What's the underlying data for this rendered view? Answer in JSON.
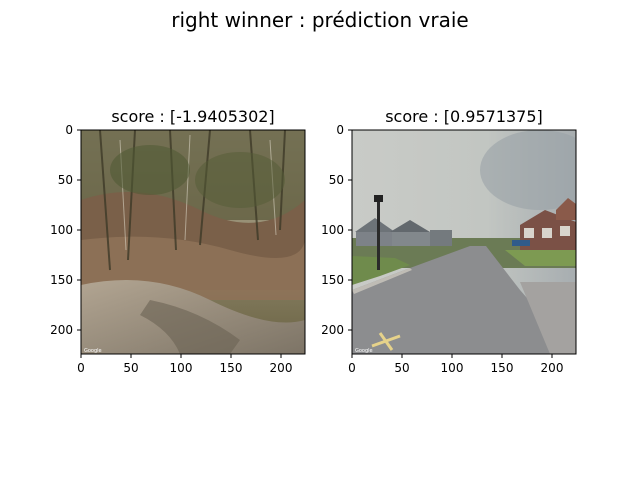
{
  "figure": {
    "suptitle": "right winner : prédiction vraie"
  },
  "chart_data": [
    {
      "type": "image",
      "title": "score : [-1.9405302]",
      "xlabel": "",
      "ylabel": "",
      "xlim": [
        0,
        224
      ],
      "ylim": [
        224,
        0
      ],
      "xticks": [
        0,
        50,
        100,
        150,
        200
      ],
      "yticks": [
        0,
        50,
        100,
        150,
        200
      ],
      "image_content": "forest-slope-with-leaf-litter-and-path",
      "watermark": "Google",
      "colors": {
        "sky": "#c9c2b0",
        "trees": "#5b5a3a",
        "litter": "#8a6e52",
        "ground": "#a39a8e"
      }
    },
    {
      "type": "image",
      "title": "score : [0.9571375]",
      "xlabel": "",
      "ylabel": "",
      "xlim": [
        0,
        224
      ],
      "ylim": [
        224,
        0
      ],
      "xticks": [
        0,
        50,
        100,
        150,
        200
      ],
      "yticks": [
        0,
        50,
        100,
        150,
        200
      ],
      "image_content": "suburban-street-with-houses-and-lamp-post",
      "watermark": "Google",
      "colors": {
        "sky": "#c4c8c4",
        "road": "#8a8b8c",
        "grass": "#6e8a4e",
        "houses": "#7a5a4e"
      }
    }
  ]
}
